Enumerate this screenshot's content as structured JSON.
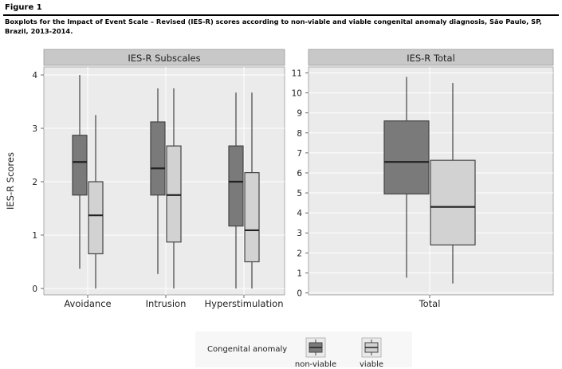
{
  "figure_label": "Figure 1",
  "caption": "Boxplots for the Impact of Event Scale – Revised (IES-R) scores according to non-viable and viable congenital anomaly diagnosis, São Paulo, SP, Brazil, 2013-2014.",
  "colors": {
    "non_viable": "#7a7a7a",
    "viable": "#d2d2d2",
    "strip": "#c8c8c8",
    "panel_bg": "#ebebeb",
    "grid": "#ffffff"
  },
  "chart_data": [
    {
      "type": "boxplot",
      "panel": "IES-R Subscales",
      "ylabel": "IES-R Scores",
      "ylim": [
        -0.12,
        4.15
      ],
      "yticks": [
        0,
        1,
        2,
        3,
        4
      ],
      "categories": [
        "Avoidance",
        "Intrusion",
        "Hyperstimulation"
      ],
      "series": [
        {
          "name": "non-viable",
          "boxes": [
            {
              "min": 0.37,
              "q1": 1.75,
              "median": 2.37,
              "q3": 2.87,
              "max": 4.0
            },
            {
              "min": 0.27,
              "q1": 1.75,
              "median": 2.25,
              "q3": 3.12,
              "max": 3.75
            },
            {
              "min": 0.0,
              "q1": 1.17,
              "median": 2.0,
              "q3": 2.67,
              "max": 3.67
            }
          ]
        },
        {
          "name": "viable",
          "boxes": [
            {
              "min": 0.0,
              "q1": 0.65,
              "median": 1.37,
              "q3": 2.0,
              "max": 3.25
            },
            {
              "min": 0.0,
              "q1": 0.87,
              "median": 1.75,
              "q3": 2.67,
              "max": 3.75
            },
            {
              "min": 0.0,
              "q1": 0.5,
              "median": 1.09,
              "q3": 2.17,
              "max": 3.67
            }
          ]
        }
      ]
    },
    {
      "type": "boxplot",
      "panel": "IES-R Total",
      "ylim": [
        -0.1,
        11.3
      ],
      "yticks": [
        0,
        1,
        2,
        3,
        4,
        5,
        6,
        7,
        8,
        9,
        10,
        11
      ],
      "categories": [
        "Total"
      ],
      "series": [
        {
          "name": "non-viable",
          "boxes": [
            {
              "min": 0.76,
              "q1": 4.95,
              "median": 6.55,
              "q3": 8.6,
              "max": 10.8
            }
          ]
        },
        {
          "name": "viable",
          "boxes": [
            {
              "min": 0.47,
              "q1": 2.4,
              "median": 4.3,
              "q3": 6.63,
              "max": 10.5
            }
          ]
        }
      ]
    }
  ],
  "legend": {
    "title": "Congenital anomaly",
    "position": "bottom",
    "items": [
      {
        "label": "non-viable"
      },
      {
        "label": "viable"
      }
    ]
  }
}
